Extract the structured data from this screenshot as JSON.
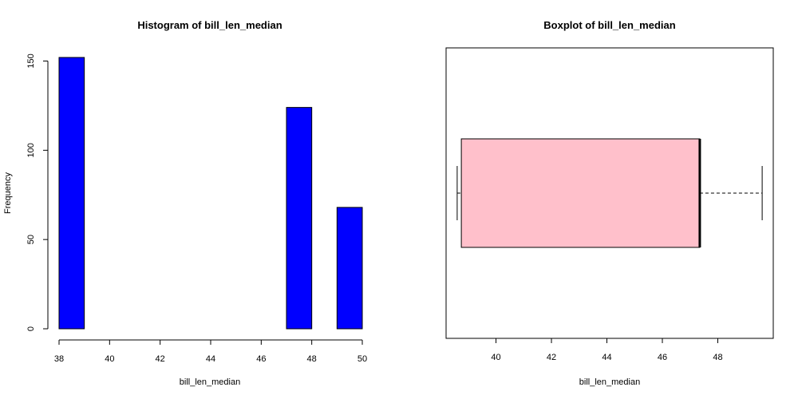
{
  "chart_data": [
    {
      "type": "bar",
      "title": "Histogram of bill_len_median",
      "xlabel": "bill_len_median",
      "ylabel": "Frequency",
      "bins": [
        [
          38,
          39
        ],
        [
          39,
          40
        ],
        [
          40,
          41
        ],
        [
          41,
          42
        ],
        [
          42,
          43
        ],
        [
          43,
          44
        ],
        [
          44,
          45
        ],
        [
          45,
          46
        ],
        [
          46,
          47
        ],
        [
          47,
          48
        ],
        [
          48,
          49
        ],
        [
          49,
          50
        ]
      ],
      "values": [
        152,
        0,
        0,
        0,
        0,
        0,
        0,
        0,
        0,
        124,
        0,
        68
      ],
      "xlim": [
        38,
        50
      ],
      "ylim": [
        0,
        152
      ],
      "x_ticks": [
        "38",
        "40",
        "42",
        "44",
        "46",
        "48",
        "50"
      ],
      "y_ticks": [
        "0",
        "50",
        "100",
        "150"
      ],
      "bar_color": "#0000ff"
    },
    {
      "type": "boxplot",
      "title": "Boxplot of bill_len_median",
      "xlabel": "bill_len_median",
      "orientation": "horizontal",
      "stats": {
        "min": 38.6,
        "q1": 38.75,
        "median": 47.35,
        "q3": 47.35,
        "max": 49.6
      },
      "xlim": [
        38.2,
        50.0
      ],
      "x_ticks": [
        "40",
        "42",
        "44",
        "46",
        "48"
      ],
      "box_color": "#ffc0cb"
    }
  ]
}
